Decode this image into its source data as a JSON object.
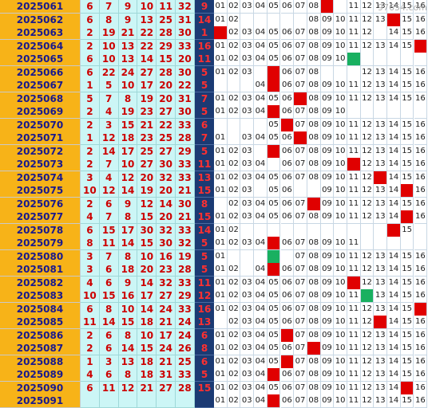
{
  "watermark": "97654.com",
  "chart_data": {
    "type": "table",
    "rows": [
      {
        "issue": "2025061",
        "reds": [
          "6",
          "7",
          "9",
          "10",
          "11",
          "32"
        ],
        "blue": "9",
        "zone": [
          "01",
          "02",
          "03",
          "04",
          "05",
          "06",
          "07",
          "08",
          "09",
          "",
          "11",
          "12",
          "13",
          "14",
          "15",
          "16"
        ],
        "hit": 9,
        "hit_color": "red"
      },
      {
        "issue": "2025062",
        "reds": [
          "6",
          "8",
          "9",
          "13",
          "25",
          "31"
        ],
        "blue": "14",
        "zone": [
          "01",
          "02",
          "",
          "",
          "",
          "",
          "",
          "08",
          "09",
          "10",
          "11",
          "12",
          "13",
          "",
          "15",
          "16"
        ],
        "hit": 14,
        "hit_color": "red"
      },
      {
        "issue": "2025063",
        "reds": [
          "2",
          "19",
          "21",
          "22",
          "28",
          "30"
        ],
        "blue": "1",
        "zone": [
          "",
          "02",
          "03",
          "04",
          "05",
          "06",
          "07",
          "08",
          "09",
          "10",
          "11",
          "12",
          "",
          "14",
          "15",
          "16"
        ],
        "hit": 1,
        "hit_color": "red"
      },
      {
        "issue": "2025064",
        "reds": [
          "2",
          "10",
          "13",
          "22",
          "29",
          "33"
        ],
        "blue": "16",
        "zone": [
          "01",
          "02",
          "03",
          "04",
          "05",
          "06",
          "07",
          "08",
          "09",
          "10",
          "11",
          "12",
          "13",
          "14",
          "15",
          ""
        ],
        "hit": 16,
        "hit_color": "red"
      },
      {
        "issue": "2025065",
        "reds": [
          "6",
          "10",
          "13",
          "14",
          "15",
          "20"
        ],
        "blue": "11",
        "zone": [
          "01",
          "02",
          "03",
          "04",
          "05",
          "06",
          "07",
          "08",
          "09",
          "10",
          "",
          "",
          "",
          "",
          "",
          ""
        ],
        "hit": 11,
        "hit_color": "green"
      },
      {
        "issue": "2025066",
        "reds": [
          "6",
          "22",
          "24",
          "27",
          "28",
          "30"
        ],
        "blue": "5",
        "zone": [
          "01",
          "02",
          "03",
          "",
          "05",
          "06",
          "07",
          "08",
          "",
          "",
          "",
          "12",
          "13",
          "14",
          "15",
          "16"
        ],
        "hit": 5,
        "hit_color": "red"
      },
      {
        "issue": "2025067",
        "reds": [
          "1",
          "5",
          "10",
          "17",
          "20",
          "22"
        ],
        "blue": "5",
        "zone": [
          "",
          "",
          "",
          "04",
          "05",
          "06",
          "07",
          "08",
          "09",
          "10",
          "11",
          "12",
          "13",
          "14",
          "15",
          "16"
        ],
        "hit": 5,
        "hit_color": "red"
      },
      {
        "issue": "2025068",
        "reds": [
          "5",
          "7",
          "8",
          "19",
          "20",
          "31"
        ],
        "blue": "7",
        "zone": [
          "01",
          "02",
          "03",
          "04",
          "05",
          "06",
          "07",
          "08",
          "09",
          "10",
          "11",
          "12",
          "13",
          "14",
          "15",
          "16"
        ],
        "hit": 7,
        "hit_color": "red"
      },
      {
        "issue": "2025069",
        "reds": [
          "2",
          "4",
          "19",
          "23",
          "27",
          "30"
        ],
        "blue": "5",
        "zone": [
          "01",
          "02",
          "03",
          "04",
          "05",
          "06",
          "07",
          "08",
          "09",
          "10",
          "",
          "",
          "",
          "",
          "",
          ""
        ],
        "hit": 5,
        "hit_color": "red"
      },
      {
        "issue": "2025070",
        "reds": [
          "2",
          "3",
          "15",
          "21",
          "22",
          "33"
        ],
        "blue": "6",
        "zone": [
          "",
          "",
          "",
          "",
          "05",
          "06",
          "07",
          "08",
          "09",
          "10",
          "11",
          "12",
          "13",
          "14",
          "15",
          "16"
        ],
        "hit": 6,
        "hit_color": "red"
      },
      {
        "issue": "2025071",
        "reds": [
          "1",
          "12",
          "18",
          "23",
          "25",
          "28"
        ],
        "blue": "7",
        "zone": [
          "01",
          "",
          "03",
          "04",
          "05",
          "06",
          "07",
          "08",
          "09",
          "10",
          "11",
          "12",
          "13",
          "14",
          "15",
          "16"
        ],
        "hit": 7,
        "hit_color": "red"
      },
      {
        "issue": "2025072",
        "reds": [
          "2",
          "14",
          "17",
          "25",
          "27",
          "29"
        ],
        "blue": "5",
        "zone": [
          "01",
          "02",
          "03",
          "",
          "05",
          "06",
          "07",
          "08",
          "09",
          "10",
          "11",
          "12",
          "13",
          "14",
          "15",
          "16"
        ],
        "hit": 5,
        "hit_color": "red"
      },
      {
        "issue": "2025073",
        "reds": [
          "2",
          "7",
          "10",
          "27",
          "30",
          "33"
        ],
        "blue": "11",
        "zone": [
          "01",
          "02",
          "03",
          "04",
          "",
          "06",
          "07",
          "08",
          "09",
          "10",
          "11",
          "12",
          "13",
          "14",
          "15",
          "16"
        ],
        "hit": 11,
        "hit_color": "red"
      },
      {
        "issue": "2025074",
        "reds": [
          "3",
          "4",
          "12",
          "20",
          "32",
          "33"
        ],
        "blue": "13",
        "zone": [
          "01",
          "02",
          "03",
          "04",
          "05",
          "06",
          "07",
          "08",
          "09",
          "10",
          "11",
          "12",
          "13",
          "14",
          "15",
          "16"
        ],
        "hit": 13,
        "hit_color": "red"
      },
      {
        "issue": "2025075",
        "reds": [
          "10",
          "12",
          "14",
          "19",
          "20",
          "21"
        ],
        "blue": "15",
        "zone": [
          "01",
          "02",
          "03",
          "",
          "05",
          "06",
          "",
          "",
          "09",
          "10",
          "11",
          "12",
          "13",
          "14",
          "15",
          "16"
        ],
        "hit": 15,
        "hit_color": "red"
      },
      {
        "issue": "2025076",
        "reds": [
          "2",
          "6",
          "9",
          "12",
          "14",
          "30"
        ],
        "blue": "8",
        "zone": [
          "",
          "02",
          "03",
          "04",
          "05",
          "06",
          "07",
          "08",
          "09",
          "10",
          "11",
          "12",
          "13",
          "14",
          "15",
          "16"
        ],
        "hit": 8,
        "hit_color": "red"
      },
      {
        "issue": "2025077",
        "reds": [
          "4",
          "7",
          "8",
          "15",
          "20",
          "21"
        ],
        "blue": "15",
        "zone": [
          "01",
          "02",
          "03",
          "04",
          "05",
          "06",
          "07",
          "08",
          "09",
          "10",
          "11",
          "12",
          "13",
          "14",
          "15",
          "16"
        ],
        "hit": 15,
        "hit_color": "red"
      },
      {
        "issue": "2025078",
        "reds": [
          "6",
          "15",
          "17",
          "30",
          "32",
          "33"
        ],
        "blue": "14",
        "zone": [
          "01",
          "02",
          "",
          "",
          "",
          "",
          "",
          "",
          "",
          "",
          "",
          "",
          "",
          "14",
          "15",
          ""
        ],
        "hit": 14,
        "hit_color": "red"
      },
      {
        "issue": "2025079",
        "reds": [
          "8",
          "11",
          "14",
          "15",
          "30",
          "32"
        ],
        "blue": "5",
        "zone": [
          "01",
          "02",
          "03",
          "04",
          "05",
          "06",
          "07",
          "08",
          "09",
          "10",
          "11",
          "",
          "",
          "",
          "",
          ""
        ],
        "hit": 5,
        "hit_color": "red"
      },
      {
        "issue": "2025080",
        "reds": [
          "3",
          "7",
          "8",
          "10",
          "16",
          "19"
        ],
        "blue": "5",
        "zone": [
          "01",
          "",
          "",
          "",
          "05",
          "",
          "07",
          "08",
          "09",
          "10",
          "11",
          "12",
          "13",
          "14",
          "15",
          "16"
        ],
        "hit": 5,
        "hit_color": "green"
      },
      {
        "issue": "2025081",
        "reds": [
          "3",
          "6",
          "18",
          "20",
          "23",
          "28"
        ],
        "blue": "5",
        "zone": [
          "01",
          "02",
          "",
          "04",
          "05",
          "06",
          "07",
          "08",
          "09",
          "10",
          "11",
          "12",
          "13",
          "14",
          "15",
          "16"
        ],
        "hit": 5,
        "hit_color": "red"
      },
      {
        "issue": "2025082",
        "reds": [
          "4",
          "6",
          "9",
          "14",
          "32",
          "33"
        ],
        "blue": "11",
        "zone": [
          "01",
          "02",
          "03",
          "04",
          "05",
          "06",
          "07",
          "08",
          "09",
          "10",
          "11",
          "12",
          "13",
          "14",
          "15",
          "16"
        ],
        "hit": 11,
        "hit_color": "red"
      },
      {
        "issue": "2025083",
        "reds": [
          "10",
          "15",
          "16",
          "17",
          "27",
          "29"
        ],
        "blue": "12",
        "zone": [
          "01",
          "02",
          "03",
          "04",
          "05",
          "06",
          "07",
          "08",
          "09",
          "10",
          "11",
          "12",
          "13",
          "14",
          "15",
          "16"
        ],
        "hit": 12,
        "hit_color": "green"
      },
      {
        "issue": "2025084",
        "reds": [
          "6",
          "8",
          "10",
          "14",
          "24",
          "33"
        ],
        "blue": "16",
        "zone": [
          "01",
          "02",
          "03",
          "04",
          "05",
          "06",
          "07",
          "08",
          "09",
          "10",
          "11",
          "12",
          "13",
          "14",
          "15",
          "16"
        ],
        "hit": 16,
        "hit_color": "red"
      },
      {
        "issue": "2025085",
        "reds": [
          "11",
          "14",
          "15",
          "18",
          "21",
          "24"
        ],
        "blue": "13",
        "zone": [
          "",
          "02",
          "03",
          "04",
          "05",
          "06",
          "07",
          "08",
          "09",
          "10",
          "11",
          "12",
          "13",
          "14",
          "15",
          "16"
        ],
        "hit": 13,
        "hit_color": "red"
      },
      {
        "issue": "2025086",
        "reds": [
          "2",
          "6",
          "8",
          "10",
          "17",
          "24"
        ],
        "blue": "6",
        "zone": [
          "01",
          "02",
          "03",
          "04",
          "05",
          "06",
          "07",
          "08",
          "09",
          "10",
          "11",
          "12",
          "13",
          "14",
          "15",
          "16"
        ],
        "hit": 6,
        "hit_color": "red"
      },
      {
        "issue": "2025087",
        "reds": [
          "2",
          "6",
          "14",
          "15",
          "24",
          "26"
        ],
        "blue": "8",
        "zone": [
          "01",
          "02",
          "03",
          "04",
          "05",
          "06",
          "07",
          "08",
          "09",
          "10",
          "11",
          "12",
          "13",
          "14",
          "15",
          "16"
        ],
        "hit": 8,
        "hit_color": "red"
      },
      {
        "issue": "2025088",
        "reds": [
          "1",
          "3",
          "13",
          "18",
          "21",
          "25"
        ],
        "blue": "6",
        "zone": [
          "01",
          "02",
          "03",
          "04",
          "05",
          "06",
          "07",
          "08",
          "09",
          "10",
          "11",
          "12",
          "13",
          "14",
          "15",
          "16"
        ],
        "hit": 6,
        "hit_color": "red"
      },
      {
        "issue": "2025089",
        "reds": [
          "4",
          "6",
          "8",
          "18",
          "31",
          "33"
        ],
        "blue": "5",
        "zone": [
          "01",
          "02",
          "03",
          "04",
          "05",
          "06",
          "07",
          "08",
          "09",
          "10",
          "11",
          "12",
          "13",
          "14",
          "15",
          "16"
        ],
        "hit": 5,
        "hit_color": "red"
      },
      {
        "issue": "2025090",
        "reds": [
          "6",
          "11",
          "12",
          "21",
          "27",
          "28"
        ],
        "blue": "15",
        "zone": [
          "01",
          "02",
          "03",
          "04",
          "05",
          "06",
          "07",
          "08",
          "09",
          "10",
          "11",
          "12",
          "13",
          "14",
          "15",
          "16"
        ],
        "hit": 15,
        "hit_color": "red"
      },
      {
        "issue": "2025091",
        "reds": [
          "",
          "",
          "",
          "",
          "",
          ""
        ],
        "blue": "",
        "zone": [
          "01",
          "02",
          "03",
          "04",
          "05",
          "06",
          "07",
          "08",
          "09",
          "10",
          "11",
          "12",
          "13",
          "14",
          "15",
          "16"
        ],
        "hit": 5,
        "hit_color": "red"
      }
    ]
  }
}
